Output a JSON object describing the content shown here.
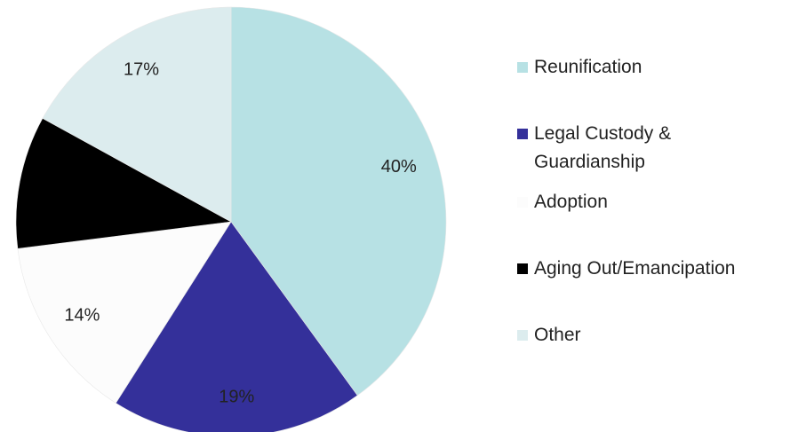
{
  "chart_data": {
    "type": "pie",
    "categories": [
      "Reunification",
      "Legal Custody & Guardianship",
      "Adoption",
      "Aging Out/Emancipation",
      "Other"
    ],
    "values": [
      40,
      19,
      14,
      10,
      17
    ],
    "value_labels": [
      "40%",
      "19%",
      "14%",
      null,
      "17%"
    ],
    "colors": [
      "#b7e1e4",
      "#34309a",
      "#fcfcfc",
      "#000000",
      "#dcecee"
    ],
    "legend": "right"
  }
}
